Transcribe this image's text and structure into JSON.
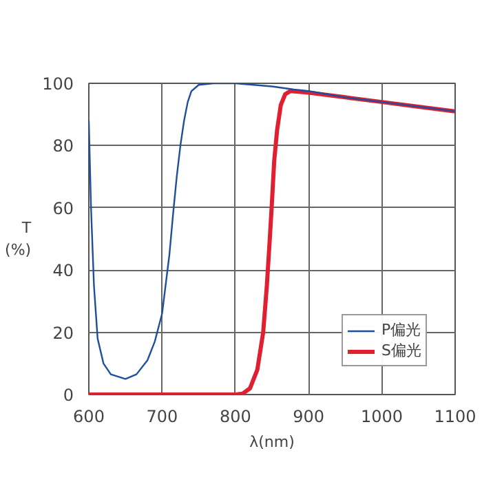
{
  "chart_data": {
    "type": "line",
    "xlabel": "λ(nm)",
    "ylabel": "T\n(%)",
    "xlim": [
      600,
      1100
    ],
    "ylim": [
      0,
      100
    ],
    "xticks": [
      600,
      700,
      800,
      900,
      1000,
      1100
    ],
    "yticks": [
      0,
      20,
      40,
      60,
      80,
      100
    ],
    "grid": true,
    "legend": "bottom right",
    "series": [
      {
        "name": "P偏光",
        "color": "#1f4e9c",
        "x": [
          600,
          603,
          607,
          612,
          620,
          630,
          650,
          665,
          680,
          690,
          700,
          710,
          715,
          720,
          725,
          730,
          735,
          740,
          750,
          770,
          800,
          850,
          880,
          900,
          950,
          1000,
          1050,
          1100
        ],
        "values": [
          88,
          60,
          35,
          18,
          10,
          6.5,
          5,
          6.5,
          11,
          17,
          26,
          45,
          58,
          70,
          80,
          88,
          94,
          97.5,
          99.5,
          100,
          100,
          99,
          98,
          97.5,
          95.5,
          94,
          92.5,
          91
        ]
      },
      {
        "name": "S偏光",
        "color": "#e02030",
        "x": [
          600,
          700,
          800,
          810,
          820,
          830,
          838,
          843,
          847,
          850,
          853,
          857,
          862,
          868,
          875,
          900,
          950,
          1000,
          1050,
          1100
        ],
        "values": [
          0,
          0,
          0,
          0.3,
          2,
          8,
          20,
          35,
          50,
          62,
          75,
          85,
          93,
          96.5,
          97.5,
          97,
          95.5,
          94,
          92.5,
          91
        ]
      }
    ]
  }
}
